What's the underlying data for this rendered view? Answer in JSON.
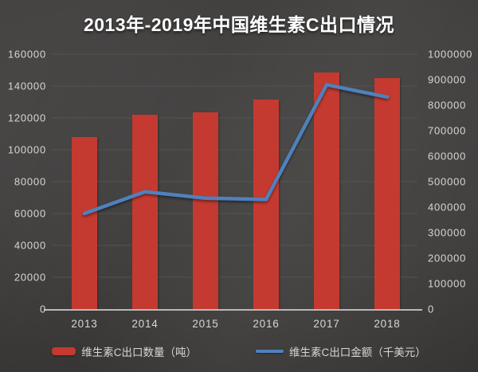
{
  "chart_data": {
    "type": "combo-bar-line",
    "title": "2013年-2019年中国维生素C出口情况",
    "categories": [
      "2013",
      "2014",
      "2015",
      "2016",
      "2017",
      "2018"
    ],
    "series": [
      {
        "name": "维生素C出口数量（吨）",
        "type": "bar",
        "axis": "left",
        "color": "#c43a30",
        "values": [
          108000,
          122000,
          123500,
          131500,
          148500,
          145000
        ]
      },
      {
        "name": "维生素C出口金额（千美元）",
        "type": "line",
        "axis": "right",
        "color": "#4f81bd",
        "values": [
          375000,
          460000,
          435000,
          430000,
          880000,
          832000
        ]
      }
    ],
    "left_axis": {
      "min": 0,
      "max": 160000,
      "step": 20000,
      "ticks": [
        "0",
        "20000",
        "40000",
        "60000",
        "80000",
        "100000",
        "120000",
        "140000",
        "160000"
      ]
    },
    "right_axis": {
      "min": 0,
      "max": 1000000,
      "step": 100000,
      "ticks": [
        "0",
        "100000",
        "200000",
        "300000",
        "400000",
        "500000",
        "600000",
        "700000",
        "800000",
        "900000",
        "1000000"
      ]
    },
    "grid": true,
    "legend_position": "bottom",
    "colors": {
      "background": "#3d3c3a",
      "grid_line": "#555351",
      "axis_line": "#b9b9b9",
      "tick_text": "#d7d6d5",
      "title_text": "#ffffff"
    }
  }
}
